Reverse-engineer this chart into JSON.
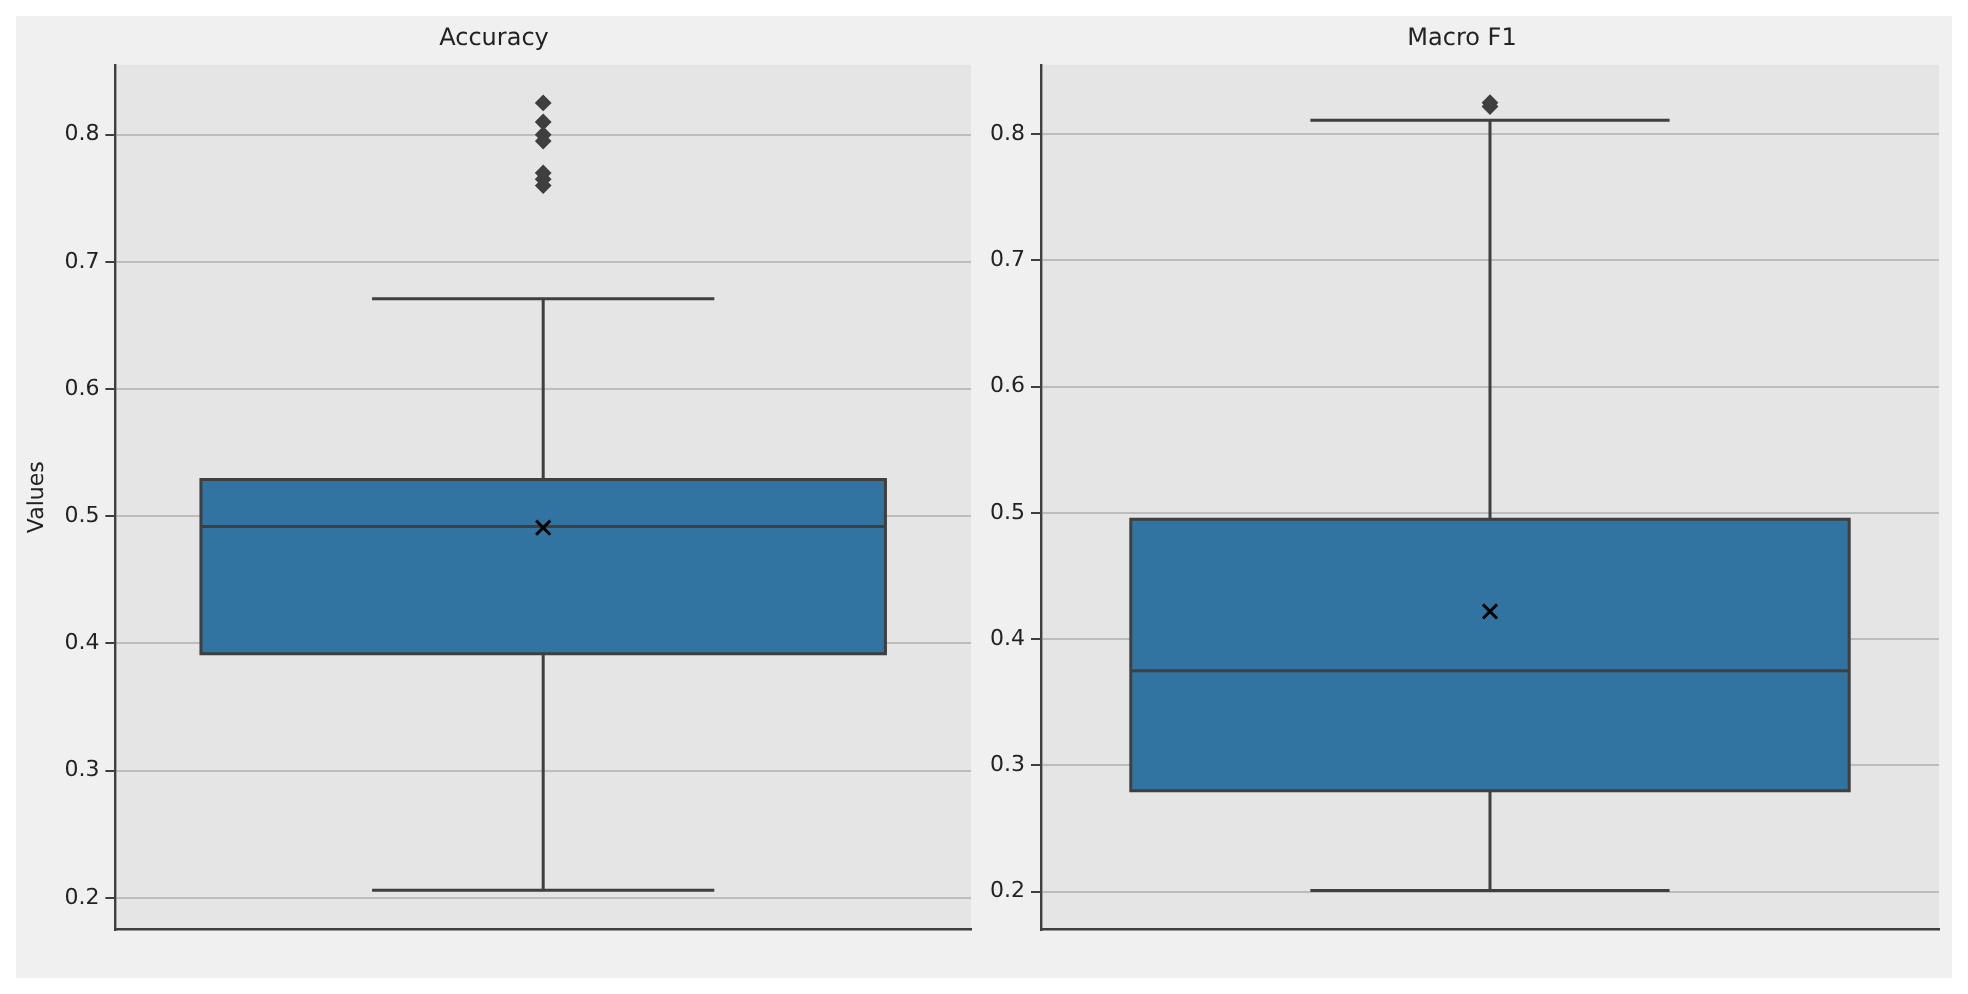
{
  "chart_data": [
    {
      "type": "box",
      "title": "Accuracy",
      "ylabel": "Values",
      "categories": [
        null
      ],
      "ylim": [
        0.175,
        0.855
      ],
      "yticks": [
        0.2,
        0.3,
        0.4,
        0.5,
        0.6,
        0.7,
        0.8
      ],
      "grid": "y",
      "tick_labels": "y",
      "legend": false,
      "series": [
        {
          "color": "#3274a1",
          "boxes": [
            {
              "low": 0.206,
              "q1": 0.392,
              "median": 0.492,
              "q3": 0.529,
              "high": 0.671,
              "mean": 0.491,
              "outliers": [
                0.76,
                0.765,
                0.77,
                0.795,
                0.8,
                0.81,
                0.825
              ]
            }
          ]
        }
      ]
    },
    {
      "type": "box",
      "title": "Macro F1",
      "categories": [
        null
      ],
      "ylim": [
        0.17,
        0.855
      ],
      "yticks": [
        0.2,
        0.3,
        0.4,
        0.5,
        0.6,
        0.7,
        0.8
      ],
      "grid": "y",
      "tick_labels": "y",
      "legend": false,
      "series": [
        {
          "color": "#3274a1",
          "boxes": [
            {
              "low": 0.201,
              "q1": 0.28,
              "median": 0.375,
              "q3": 0.495,
              "high": 0.811,
              "mean": 0.422,
              "outliers": [
                0.822,
                0.825
              ]
            }
          ]
        }
      ]
    }
  ]
}
